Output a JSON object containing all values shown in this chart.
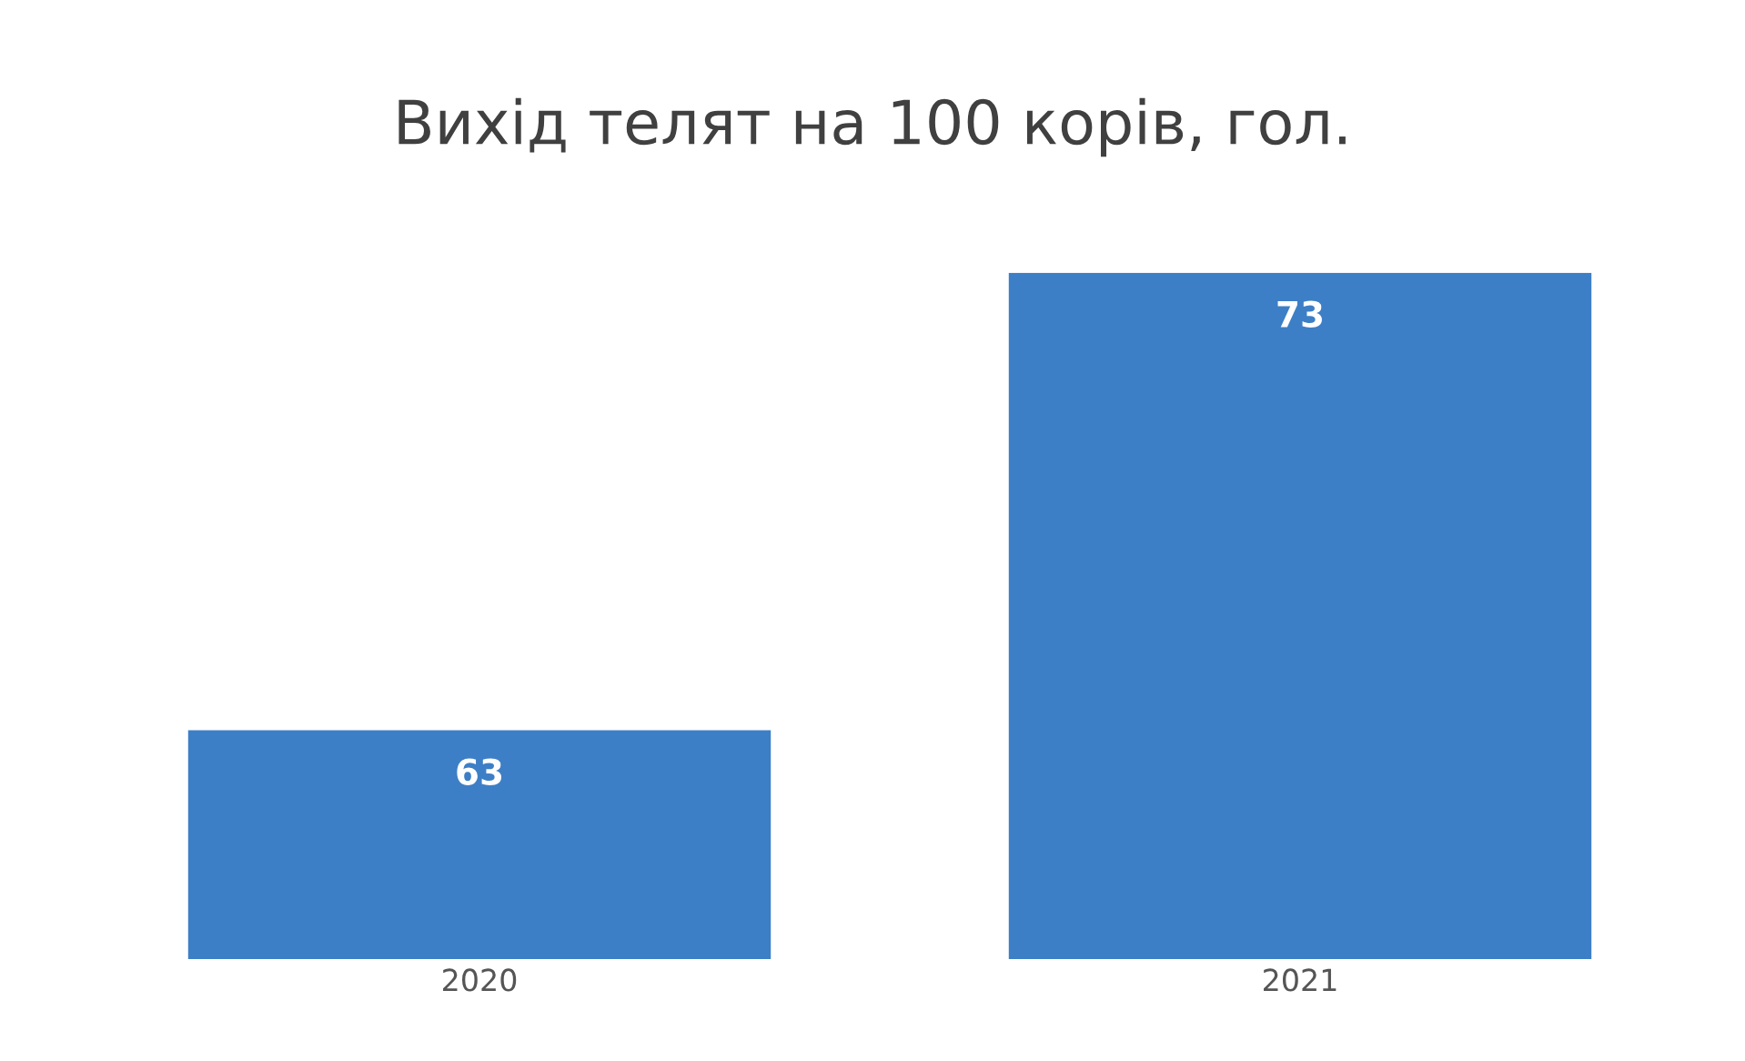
{
  "chart_data": {
    "type": "bar",
    "title": "Вихід телят на 100 корів, гол.",
    "categories": [
      "2020",
      "2021"
    ],
    "values": [
      63,
      73
    ],
    "color": "#3d7fc6",
    "ylim": [
      58,
      73
    ],
    "data_labels": true,
    "tick_labels": "x",
    "grid": false,
    "legend": false
  }
}
